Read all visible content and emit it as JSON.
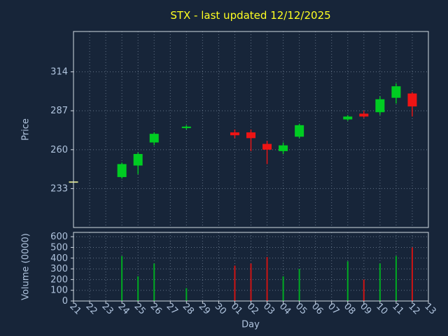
{
  "colors": {
    "background": "#172539",
    "title_text": "#ffff21",
    "axis_text": "#b0c4de",
    "spine": "#d2dae4",
    "grid": "#9fb0c3",
    "up": "#00cc22",
    "down": "#ee1414",
    "doji": "#cdd388",
    "volume_up": "#00aa22",
    "volume_down": "#cc1414"
  },
  "chart_data": {
    "type": "candlestick+volume",
    "title": "STX - last updated 12/12/2025",
    "price_axis": {
      "label": "Price",
      "ticks": [
        233,
        260,
        287,
        314
      ],
      "range": [
        206,
        342
      ],
      "grid": true
    },
    "volume_axis": {
      "label": "Volume (0000)",
      "ticks": [
        0,
        100,
        200,
        300,
        400,
        500,
        600
      ],
      "range": [
        0,
        640
      ],
      "grid": true
    },
    "x_axis": {
      "label": "Day",
      "ticks": [
        "21",
        "22",
        "23",
        "24",
        "25",
        "26",
        "27",
        "28",
        "29",
        "30",
        "01",
        "02",
        "03",
        "04",
        "05",
        "06",
        "07",
        "08",
        "09",
        "10",
        "11",
        "12",
        "13"
      ],
      "tick_rotation_deg": 45,
      "grid": true
    },
    "candles": [
      {
        "day": "21",
        "open": 238,
        "high": 238,
        "low": 238,
        "close": 238,
        "volume": 0,
        "direction": "doji"
      },
      {
        "day": "24",
        "open": 241,
        "high": 251,
        "low": 240,
        "close": 250,
        "volume": 420,
        "direction": "up"
      },
      {
        "day": "25",
        "open": 249,
        "high": 258,
        "low": 243,
        "close": 257,
        "volume": 230,
        "direction": "up"
      },
      {
        "day": "26",
        "open": 265,
        "high": 272,
        "low": 263,
        "close": 271,
        "volume": 350,
        "direction": "up"
      },
      {
        "day": "28",
        "open": 275,
        "high": 277,
        "low": 274,
        "close": 276,
        "volume": 120,
        "direction": "up"
      },
      {
        "day": "01",
        "open": 272,
        "high": 274,
        "low": 268,
        "close": 270,
        "volume": 330,
        "direction": "down"
      },
      {
        "day": "02",
        "open": 272,
        "high": 274,
        "low": 259,
        "close": 268,
        "volume": 350,
        "direction": "down"
      },
      {
        "day": "03",
        "open": 264,
        "high": 266,
        "low": 250,
        "close": 260,
        "volume": 410,
        "direction": "down"
      },
      {
        "day": "04",
        "open": 259,
        "high": 265,
        "low": 257,
        "close": 263,
        "volume": 230,
        "direction": "up"
      },
      {
        "day": "05",
        "open": 269,
        "high": 278,
        "low": 268,
        "close": 277,
        "volume": 300,
        "direction": "up"
      },
      {
        "day": "08",
        "open": 281,
        "high": 284,
        "low": 280,
        "close": 283,
        "volume": 370,
        "direction": "up"
      },
      {
        "day": "09",
        "open": 285,
        "high": 287,
        "low": 282,
        "close": 283,
        "volume": 200,
        "direction": "down"
      },
      {
        "day": "10",
        "open": 286,
        "high": 297,
        "low": 284,
        "close": 295,
        "volume": 350,
        "direction": "up"
      },
      {
        "day": "11",
        "open": 296,
        "high": 306,
        "low": 292,
        "close": 304,
        "volume": 420,
        "direction": "up"
      },
      {
        "day": "12",
        "open": 299,
        "high": 300,
        "low": 283,
        "close": 290,
        "volume": 500,
        "direction": "down"
      }
    ]
  }
}
